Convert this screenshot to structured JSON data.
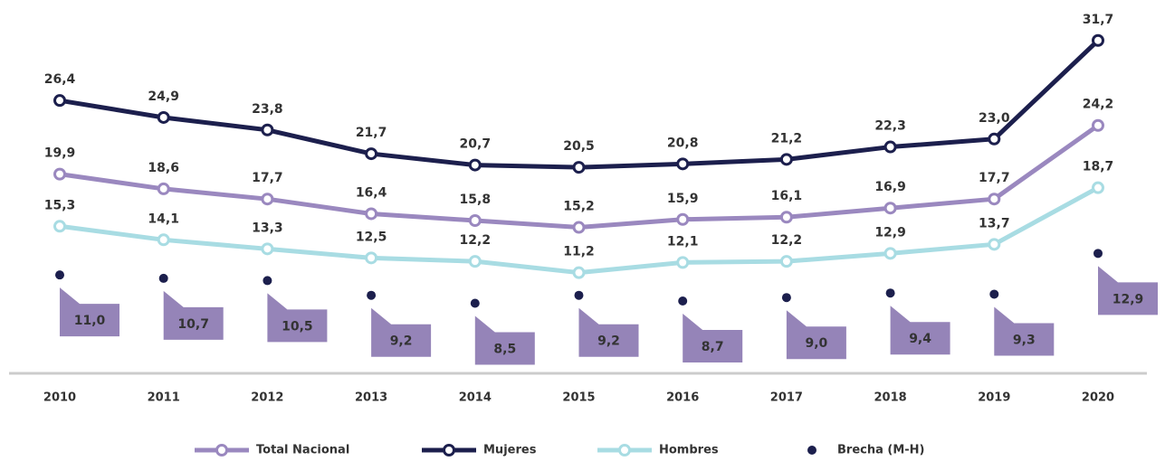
{
  "chart_data": {
    "type": "line",
    "categories": [
      "2010",
      "2011",
      "2012",
      "2013",
      "2014",
      "2015",
      "2016",
      "2017",
      "2018",
      "2019",
      "2020"
    ],
    "ylim": [
      0,
      32
    ],
    "series": [
      {
        "name": "Total Nacional",
        "color": "#9a88bf",
        "style": "line",
        "values": [
          19.9,
          18.6,
          17.7,
          16.4,
          15.8,
          15.2,
          15.9,
          16.1,
          16.9,
          17.7,
          24.2
        ],
        "value_labels": [
          "19,9",
          "18,6",
          "17,7",
          "16,4",
          "15,8",
          "15,2",
          "15,9",
          "16,1",
          "16,9",
          "17,7",
          "24,2"
        ]
      },
      {
        "name": "Mujeres",
        "color": "#1c1f4d",
        "style": "line",
        "values": [
          26.4,
          24.9,
          23.8,
          21.7,
          20.7,
          20.5,
          20.8,
          21.2,
          22.3,
          23.0,
          31.7
        ],
        "value_labels": [
          "26,4",
          "24,9",
          "23,8",
          "21,7",
          "20,7",
          "20,5",
          "20,8",
          "21,2",
          "22,3",
          "23,0",
          "31,7"
        ]
      },
      {
        "name": "Hombres",
        "color": "#a8dce3",
        "style": "line",
        "values": [
          15.3,
          14.1,
          13.3,
          12.5,
          12.2,
          11.2,
          12.1,
          12.2,
          12.9,
          13.7,
          18.7
        ],
        "value_labels": [
          "15,3",
          "14,1",
          "13,3",
          "12,5",
          "12,2",
          "11,2",
          "12,1",
          "12,2",
          "12,9",
          "13,7",
          "18,7"
        ]
      },
      {
        "name": "Brecha (M-H)",
        "color": "#1c1f4d",
        "label_color": "#9584b8",
        "style": "point",
        "values": [
          11.0,
          10.7,
          10.5,
          9.2,
          8.5,
          9.2,
          8.7,
          9.0,
          9.4,
          9.3,
          12.9
        ],
        "value_labels": [
          "11,0",
          "10,7",
          "10,5",
          "9,2",
          "8,5",
          "9,2",
          "8,7",
          "9,0",
          "9,4",
          "9,3",
          "12,9"
        ]
      }
    ]
  }
}
